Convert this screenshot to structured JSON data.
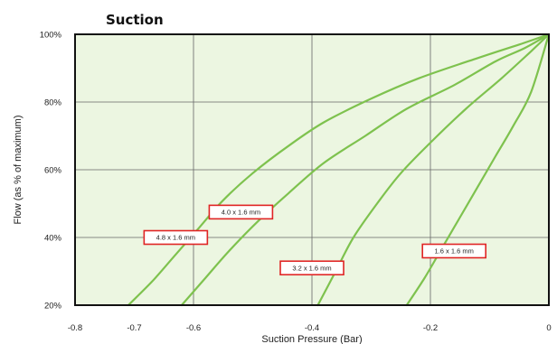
{
  "chart_data": {
    "type": "line",
    "title": "Suction",
    "xlabel": "Suction Pressure (Bar)",
    "ylabel": "Flow (as % of maximum)",
    "xlim": [
      -0.8,
      0
    ],
    "ylim": [
      20,
      100
    ],
    "x_ticks": [
      "-0.8",
      "-0.7",
      "-0.6",
      "-0.4",
      "-0.2",
      "0"
    ],
    "y_ticks": [
      "20%",
      "40%",
      "60%",
      "80%",
      "100%"
    ],
    "grid": true,
    "colors": {
      "plot_bg": "#ecf6e1",
      "line": "#7ec24e",
      "grid": "#666666",
      "label_border": "#e02424"
    },
    "series": [
      {
        "name": "4.8 x 1.6 mm",
        "points": [
          [
            -0.71,
            20
          ],
          [
            -0.67,
            27
          ],
          [
            -0.63,
            35
          ],
          [
            -0.59,
            43
          ],
          [
            -0.55,
            51
          ],
          [
            -0.5,
            59
          ],
          [
            -0.44,
            67
          ],
          [
            -0.38,
            74
          ],
          [
            -0.3,
            81
          ],
          [
            -0.22,
            87
          ],
          [
            -0.12,
            93
          ],
          [
            -0.05,
            97
          ],
          [
            0,
            100
          ]
        ]
      },
      {
        "name": "4.0 x 1.6 mm",
        "points": [
          [
            -0.62,
            20
          ],
          [
            -0.58,
            28
          ],
          [
            -0.54,
            36
          ],
          [
            -0.49,
            45
          ],
          [
            -0.44,
            53
          ],
          [
            -0.38,
            62
          ],
          [
            -0.31,
            70
          ],
          [
            -0.24,
            78
          ],
          [
            -0.16,
            85
          ],
          [
            -0.09,
            92
          ],
          [
            -0.04,
            96
          ],
          [
            0,
            100
          ]
        ]
      },
      {
        "name": "3.2 x 1.6 mm",
        "points": [
          [
            -0.39,
            20
          ],
          [
            -0.36,
            30
          ],
          [
            -0.33,
            40
          ],
          [
            -0.29,
            50
          ],
          [
            -0.25,
            59
          ],
          [
            -0.2,
            68
          ],
          [
            -0.14,
            78
          ],
          [
            -0.08,
            87
          ],
          [
            -0.03,
            95
          ],
          [
            0,
            100
          ]
        ]
      },
      {
        "name": "1.6 x 1.6 mm",
        "points": [
          [
            -0.24,
            20
          ],
          [
            -0.21,
            28
          ],
          [
            -0.18,
            37
          ],
          [
            -0.15,
            46
          ],
          [
            -0.12,
            55
          ],
          [
            -0.09,
            64
          ],
          [
            -0.06,
            73
          ],
          [
            -0.03,
            83
          ],
          [
            0,
            100
          ]
        ]
      }
    ],
    "annotations": [
      {
        "text": "4.8 x 1.6 mm",
        "x": -0.63,
        "y": 40
      },
      {
        "text": "4.0 x 1.6 mm",
        "x": -0.52,
        "y": 47.5
      },
      {
        "text": "3.2 x 1.6 mm",
        "x": -0.4,
        "y": 31
      },
      {
        "text": "1.6 x 1.6 mm",
        "x": -0.16,
        "y": 36
      }
    ]
  }
}
